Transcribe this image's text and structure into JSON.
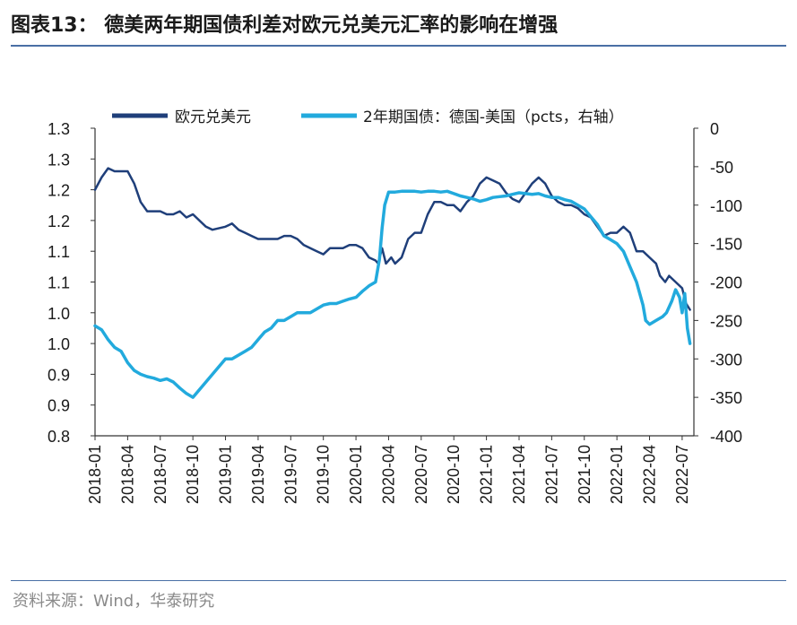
{
  "header": {
    "title": "图表13：  德美两年期国债利差对欧元兑美元汇率的影响在增强"
  },
  "footer": {
    "source": "资料来源：Wind，华泰研究"
  },
  "chart_data": {
    "type": "line",
    "title": "图表13：  德美两年期国债利差对欧元兑美元汇率的影响在增强",
    "xlabel": "",
    "ylabel_left": "",
    "ylabel_right": "",
    "x_ticks": [
      "2018-01",
      "2018-04",
      "2018-07",
      "2018-10",
      "2019-01",
      "2019-04",
      "2019-07",
      "2019-10",
      "2020-01",
      "2020-04",
      "2020-07",
      "2020-10",
      "2021-01",
      "2021-04",
      "2021-07",
      "2021-10",
      "2022-01",
      "2022-04",
      "2022-07"
    ],
    "x_range": [
      2018.0,
      2022.59
    ],
    "y_left_ticks": [
      "1.3",
      "1.3",
      "1.2",
      "1.2",
      "1.1",
      "1.1",
      "1.0",
      "1.0",
      "0.9",
      "0.9",
      "0.8"
    ],
    "y_left_range": [
      0.8,
      1.3
    ],
    "y_right_ticks": [
      "0",
      "-50",
      "-100",
      "-150",
      "-200",
      "-250",
      "-300",
      "-350",
      "-400"
    ],
    "y_right_range": [
      -400,
      0
    ],
    "grid": false,
    "legend_position": "top",
    "series": [
      {
        "name": "欧元兑美元",
        "axis": "left",
        "color": "#1f3f7a",
        "points": [
          [
            2018.0,
            1.2
          ],
          [
            2018.05,
            1.22
          ],
          [
            2018.1,
            1.235
          ],
          [
            2018.15,
            1.23
          ],
          [
            2018.2,
            1.23
          ],
          [
            2018.25,
            1.23
          ],
          [
            2018.3,
            1.21
          ],
          [
            2018.35,
            1.18
          ],
          [
            2018.4,
            1.165
          ],
          [
            2018.5,
            1.165
          ],
          [
            2018.55,
            1.16
          ],
          [
            2018.6,
            1.16
          ],
          [
            2018.65,
            1.165
          ],
          [
            2018.7,
            1.155
          ],
          [
            2018.75,
            1.16
          ],
          [
            2018.8,
            1.15
          ],
          [
            2018.85,
            1.14
          ],
          [
            2018.9,
            1.135
          ],
          [
            2019.0,
            1.14
          ],
          [
            2019.05,
            1.145
          ],
          [
            2019.1,
            1.135
          ],
          [
            2019.15,
            1.13
          ],
          [
            2019.2,
            1.125
          ],
          [
            2019.25,
            1.12
          ],
          [
            2019.3,
            1.12
          ],
          [
            2019.35,
            1.12
          ],
          [
            2019.4,
            1.12
          ],
          [
            2019.45,
            1.125
          ],
          [
            2019.5,
            1.125
          ],
          [
            2019.55,
            1.12
          ],
          [
            2019.6,
            1.11
          ],
          [
            2019.65,
            1.105
          ],
          [
            2019.7,
            1.1
          ],
          [
            2019.75,
            1.095
          ],
          [
            2019.8,
            1.105
          ],
          [
            2019.85,
            1.105
          ],
          [
            2019.9,
            1.105
          ],
          [
            2019.95,
            1.11
          ],
          [
            2020.0,
            1.11
          ],
          [
            2020.05,
            1.105
          ],
          [
            2020.1,
            1.09
          ],
          [
            2020.15,
            1.085
          ],
          [
            2020.17,
            1.08
          ],
          [
            2020.2,
            1.105
          ],
          [
            2020.23,
            1.08
          ],
          [
            2020.27,
            1.09
          ],
          [
            2020.3,
            1.08
          ],
          [
            2020.35,
            1.09
          ],
          [
            2020.4,
            1.12
          ],
          [
            2020.45,
            1.13
          ],
          [
            2020.5,
            1.13
          ],
          [
            2020.55,
            1.16
          ],
          [
            2020.6,
            1.18
          ],
          [
            2020.65,
            1.18
          ],
          [
            2020.7,
            1.175
          ],
          [
            2020.75,
            1.175
          ],
          [
            2020.8,
            1.165
          ],
          [
            2020.85,
            1.18
          ],
          [
            2020.9,
            1.19
          ],
          [
            2020.95,
            1.21
          ],
          [
            2021.0,
            1.22
          ],
          [
            2021.05,
            1.215
          ],
          [
            2021.1,
            1.21
          ],
          [
            2021.15,
            1.195
          ],
          [
            2021.2,
            1.185
          ],
          [
            2021.25,
            1.18
          ],
          [
            2021.3,
            1.195
          ],
          [
            2021.35,
            1.21
          ],
          [
            2021.4,
            1.22
          ],
          [
            2021.45,
            1.21
          ],
          [
            2021.5,
            1.19
          ],
          [
            2021.55,
            1.18
          ],
          [
            2021.6,
            1.175
          ],
          [
            2021.65,
            1.175
          ],
          [
            2021.7,
            1.17
          ],
          [
            2021.75,
            1.16
          ],
          [
            2021.8,
            1.155
          ],
          [
            2021.85,
            1.14
          ],
          [
            2021.9,
            1.125
          ],
          [
            2021.95,
            1.13
          ],
          [
            2022.0,
            1.13
          ],
          [
            2022.05,
            1.14
          ],
          [
            2022.1,
            1.13
          ],
          [
            2022.15,
            1.1
          ],
          [
            2022.2,
            1.1
          ],
          [
            2022.25,
            1.09
          ],
          [
            2022.3,
            1.08
          ],
          [
            2022.33,
            1.06
          ],
          [
            2022.37,
            1.05
          ],
          [
            2022.4,
            1.06
          ],
          [
            2022.45,
            1.05
          ],
          [
            2022.5,
            1.04
          ],
          [
            2022.53,
            1.015
          ],
          [
            2022.56,
            1.005
          ]
        ]
      },
      {
        "name": "2年期国债：德国-美国（pcts，右轴）",
        "axis": "right",
        "color": "#22aadd",
        "points": [
          [
            2018.0,
            -257
          ],
          [
            2018.05,
            -262
          ],
          [
            2018.1,
            -275
          ],
          [
            2018.15,
            -285
          ],
          [
            2018.2,
            -290
          ],
          [
            2018.25,
            -305
          ],
          [
            2018.3,
            -315
          ],
          [
            2018.35,
            -320
          ],
          [
            2018.4,
            -323
          ],
          [
            2018.45,
            -325
          ],
          [
            2018.5,
            -328
          ],
          [
            2018.55,
            -326
          ],
          [
            2018.6,
            -330
          ],
          [
            2018.65,
            -338
          ],
          [
            2018.7,
            -345
          ],
          [
            2018.75,
            -350
          ],
          [
            2018.8,
            -340
          ],
          [
            2018.85,
            -330
          ],
          [
            2018.9,
            -320
          ],
          [
            2018.95,
            -310
          ],
          [
            2019.0,
            -300
          ],
          [
            2019.05,
            -300
          ],
          [
            2019.1,
            -295
          ],
          [
            2019.15,
            -290
          ],
          [
            2019.2,
            -285
          ],
          [
            2019.25,
            -275
          ],
          [
            2019.3,
            -265
          ],
          [
            2019.35,
            -260
          ],
          [
            2019.4,
            -250
          ],
          [
            2019.45,
            -250
          ],
          [
            2019.5,
            -245
          ],
          [
            2019.55,
            -240
          ],
          [
            2019.6,
            -240
          ],
          [
            2019.65,
            -240
          ],
          [
            2019.7,
            -235
          ],
          [
            2019.75,
            -230
          ],
          [
            2019.8,
            -228
          ],
          [
            2019.85,
            -228
          ],
          [
            2019.9,
            -225
          ],
          [
            2019.95,
            -222
          ],
          [
            2020.0,
            -220
          ],
          [
            2020.05,
            -212
          ],
          [
            2020.1,
            -205
          ],
          [
            2020.15,
            -200
          ],
          [
            2020.18,
            -170
          ],
          [
            2020.2,
            -130
          ],
          [
            2020.22,
            -100
          ],
          [
            2020.25,
            -83
          ],
          [
            2020.3,
            -83
          ],
          [
            2020.35,
            -82
          ],
          [
            2020.4,
            -82
          ],
          [
            2020.45,
            -82
          ],
          [
            2020.5,
            -83
          ],
          [
            2020.55,
            -82
          ],
          [
            2020.6,
            -82
          ],
          [
            2020.65,
            -83
          ],
          [
            2020.7,
            -82
          ],
          [
            2020.75,
            -85
          ],
          [
            2020.8,
            -88
          ],
          [
            2020.85,
            -90
          ],
          [
            2020.9,
            -92
          ],
          [
            2020.95,
            -95
          ],
          [
            2021.0,
            -93
          ],
          [
            2021.05,
            -90
          ],
          [
            2021.1,
            -89
          ],
          [
            2021.15,
            -88
          ],
          [
            2021.2,
            -86
          ],
          [
            2021.25,
            -84
          ],
          [
            2021.3,
            -85
          ],
          [
            2021.35,
            -86
          ],
          [
            2021.4,
            -85
          ],
          [
            2021.45,
            -88
          ],
          [
            2021.5,
            -90
          ],
          [
            2021.55,
            -90
          ],
          [
            2021.6,
            -93
          ],
          [
            2021.65,
            -95
          ],
          [
            2021.7,
            -100
          ],
          [
            2021.75,
            -105
          ],
          [
            2021.8,
            -115
          ],
          [
            2021.85,
            -125
          ],
          [
            2021.9,
            -140
          ],
          [
            2021.95,
            -145
          ],
          [
            2022.0,
            -150
          ],
          [
            2022.05,
            -160
          ],
          [
            2022.1,
            -180
          ],
          [
            2022.15,
            -200
          ],
          [
            2022.2,
            -230
          ],
          [
            2022.22,
            -250
          ],
          [
            2022.25,
            -255
          ],
          [
            2022.3,
            -250
          ],
          [
            2022.35,
            -245
          ],
          [
            2022.38,
            -240
          ],
          [
            2022.42,
            -225
          ],
          [
            2022.45,
            -210
          ],
          [
            2022.48,
            -220
          ],
          [
            2022.5,
            -240
          ],
          [
            2022.52,
            -215
          ],
          [
            2022.54,
            -260
          ],
          [
            2022.56,
            -280
          ]
        ]
      }
    ]
  }
}
